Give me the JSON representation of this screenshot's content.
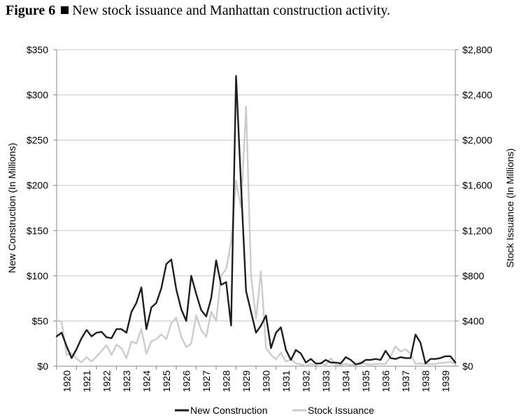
{
  "figure": {
    "number": "Figure 6",
    "caption": "New stock issuance and Manhattan construction activity."
  },
  "chart_data": {
    "type": "line",
    "title": "",
    "x_start": 1920.0,
    "x_step": 0.25,
    "xlim": [
      1920,
      1940
    ],
    "x_tick_labels": [
      "1920",
      "1921",
      "1922",
      "1923",
      "1924",
      "1925",
      "1926",
      "1927",
      "1928",
      "1929",
      "1930",
      "1931",
      "1932",
      "1933",
      "1934",
      "1935",
      "1936",
      "1937",
      "1938",
      "1939"
    ],
    "y_left": {
      "label": "New Construction (In Millions)",
      "lim": [
        0,
        350
      ],
      "tick_labels": [
        "$0",
        "$50",
        "$100",
        "$150",
        "$200",
        "$250",
        "$300",
        "$350"
      ]
    },
    "y_right": {
      "label": "Stock Issuance (In Millions)",
      "lim": [
        0,
        2800
      ],
      "tick_labels": [
        "$0",
        "$400",
        "$800",
        "$1,200",
        "$1,600",
        "$2,000",
        "$2,400",
        "$2,800"
      ]
    },
    "grid": true,
    "legend_position": "bottom-center",
    "series": [
      {
        "name": "New Construction",
        "axis": "left",
        "color": "#1e1e1e",
        "values": [
          33,
          37,
          22,
          9,
          19,
          31,
          40,
          33,
          37,
          38,
          32,
          31,
          41,
          41,
          37,
          60,
          70,
          87,
          41,
          65,
          70,
          86,
          113,
          118,
          85,
          63,
          50,
          100,
          80,
          62,
          55,
          75,
          117,
          90,
          93,
          45,
          321,
          200,
          83,
          60,
          37,
          45,
          56,
          20,
          37,
          43,
          18,
          7,
          18,
          14,
          4,
          8,
          3,
          3,
          7,
          4,
          4,
          3,
          10,
          7,
          2,
          3,
          7,
          7,
          8,
          7,
          17,
          9,
          8,
          10,
          9,
          9,
          35,
          26,
          3,
          8,
          8,
          9,
          11,
          11,
          4
        ]
      },
      {
        "name": "Stock Issuance",
        "axis": "right",
        "color": "#cccccc",
        "values": [
          410,
          390,
          100,
          115,
          65,
          35,
          80,
          40,
          85,
          135,
          185,
          100,
          190,
          160,
          70,
          220,
          200,
          330,
          110,
          220,
          240,
          280,
          240,
          380,
          430,
          260,
          170,
          200,
          450,
          320,
          260,
          480,
          400,
          800,
          860,
          1100,
          1640,
          1400,
          2300,
          800,
          420,
          840,
          160,
          100,
          60,
          120,
          40,
          60,
          25,
          15,
          5,
          20,
          10,
          30,
          10,
          70,
          10,
          10,
          20,
          10,
          15,
          40,
          20,
          15,
          20,
          20,
          20,
          90,
          175,
          130,
          150,
          110,
          20,
          25,
          20,
          20,
          20,
          30,
          30,
          40,
          20
        ]
      }
    ]
  }
}
